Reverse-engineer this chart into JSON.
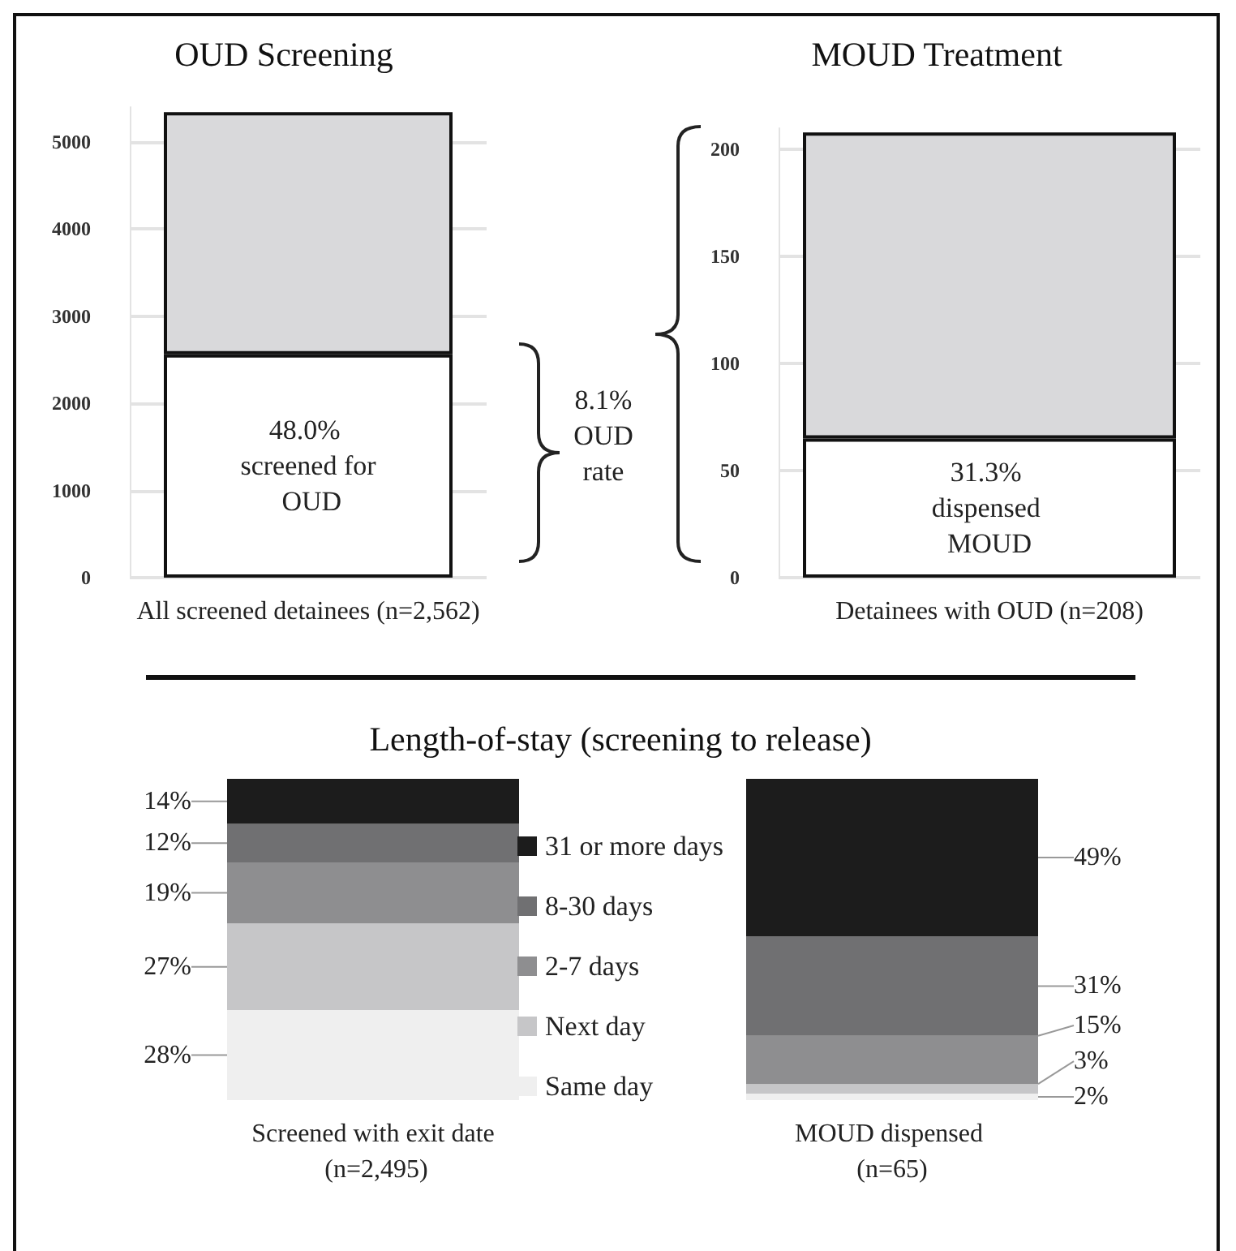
{
  "chart_data": [
    {
      "type": "bar",
      "title": "OUD Screening",
      "categories": [
        "All screened detainees (n=2,562)"
      ],
      "stacked": true,
      "grid": "y",
      "ylim": [
        0,
        5400
      ],
      "yticks": [
        0,
        {
          "value": 1000,
          "label": "1000"
        },
        {
          "value": 2000,
          "label": "2000"
        },
        {
          "value": 3000,
          "label": "3000"
        },
        {
          "value": 4000,
          "label": "4000"
        },
        {
          "value": 5000,
          "label": "5000"
        }
      ],
      "annotations": [
        "48.0% screened for OUD",
        "8.1% OUD rate"
      ],
      "series": [
        {
          "color": "#ffffff",
          "values": [
            2562
          ]
        },
        {
          "color": "#d9d9db",
          "values": [
            2780
          ]
        }
      ]
    },
    {
      "type": "bar",
      "title": "MOUD Treatment",
      "categories": [
        "Detainees with OUD (n=208)"
      ],
      "stacked": true,
      "grid": "y",
      "ylim": [
        0,
        210
      ],
      "yticks": [
        0,
        50,
        100,
        150,
        200
      ],
      "annotations": [
        "31.3% dispensed MOUD"
      ],
      "series": [
        {
          "color": "#ffffff",
          "values": [
            65
          ]
        },
        {
          "color": "#d9d9db",
          "values": [
            143
          ]
        }
      ]
    },
    {
      "type": "bar",
      "title": "Length-of-stay (screening to release)",
      "categories": [
        "Screened with exit date (n=2,495)",
        "MOUD dispensed (n=65)"
      ],
      "stacked": true,
      "ylim": [
        0,
        100
      ],
      "tick_labels": "x",
      "legend": "center",
      "series": [
        {
          "name": "Same day",
          "color": "#efefef",
          "values": [
            28,
            2
          ],
          "value_labels": [
            "28%",
            "2%"
          ]
        },
        {
          "name": "Next day",
          "color": "#c6c6c8",
          "values": [
            27,
            3
          ],
          "value_labels": [
            "27%",
            "3%"
          ]
        },
        {
          "name": "2-7 days",
          "color": "#8e8e90",
          "values": [
            19,
            15
          ],
          "value_labels": [
            "19%",
            "15%"
          ]
        },
        {
          "name": "8-30 days",
          "color": "#707072",
          "values": [
            12,
            31
          ],
          "value_labels": [
            "12%",
            "31%"
          ]
        },
        {
          "name": "31 or more days",
          "color": "#1c1c1c",
          "values": [
            14,
            49
          ],
          "value_labels": [
            "14%",
            "49%"
          ]
        }
      ]
    }
  ]
}
